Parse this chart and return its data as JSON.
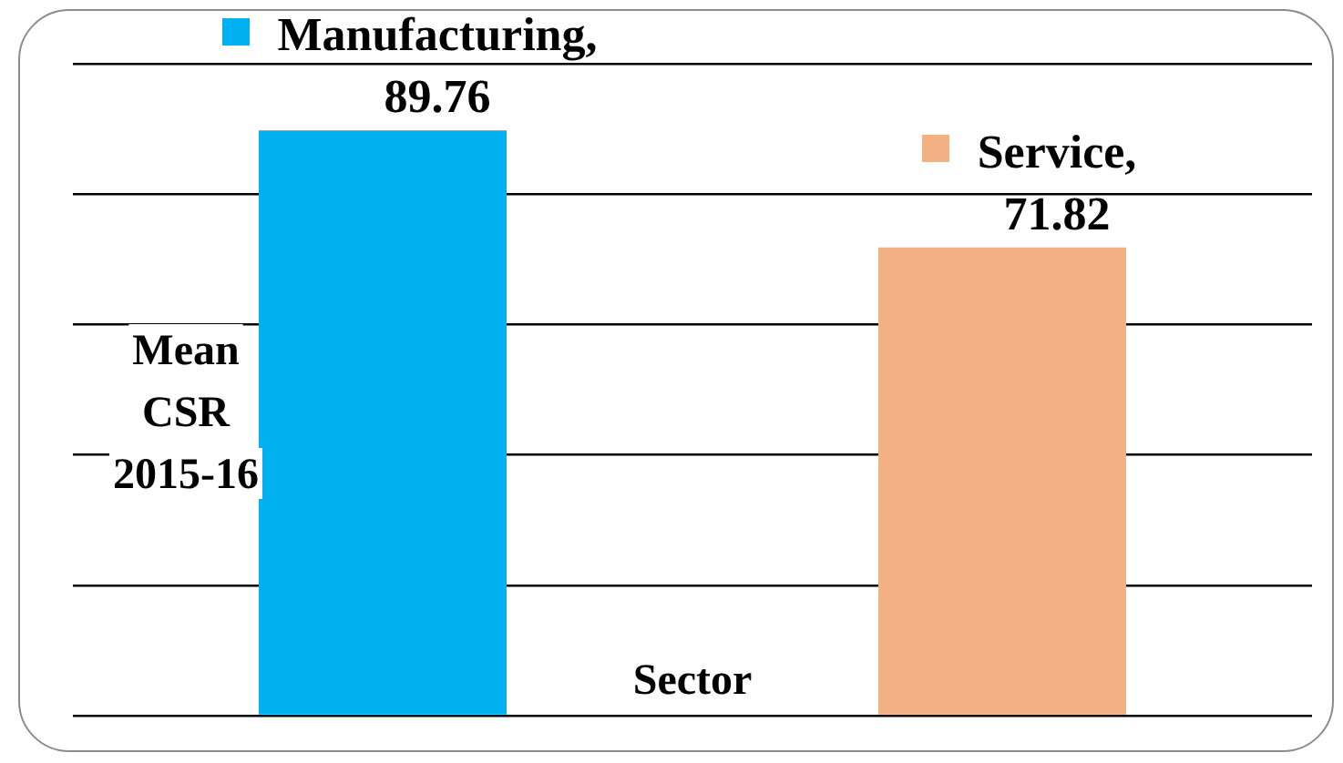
{
  "chart_data": {
    "type": "bar",
    "xlabel": "Sector",
    "ylabel": "Mean CSR 2015-16",
    "categories": [
      null,
      null
    ],
    "values": [
      89.76,
      71.82
    ],
    "colors": [
      "#00b0f0",
      "#f4b183"
    ],
    "value_labels": [
      "Manufacturing, 89.76",
      "Service, 71.82"
    ],
    "ylim": [
      0,
      100
    ],
    "yticks": [
      {
        "value": 0,
        "label": null
      },
      {
        "value": 20,
        "label": null
      },
      {
        "value": 40,
        "label": null
      },
      {
        "value": 60,
        "label": null
      },
      {
        "value": 80,
        "label": null
      },
      {
        "value": 100,
        "label": null
      }
    ],
    "grid": "y",
    "tick_labels": false
  }
}
